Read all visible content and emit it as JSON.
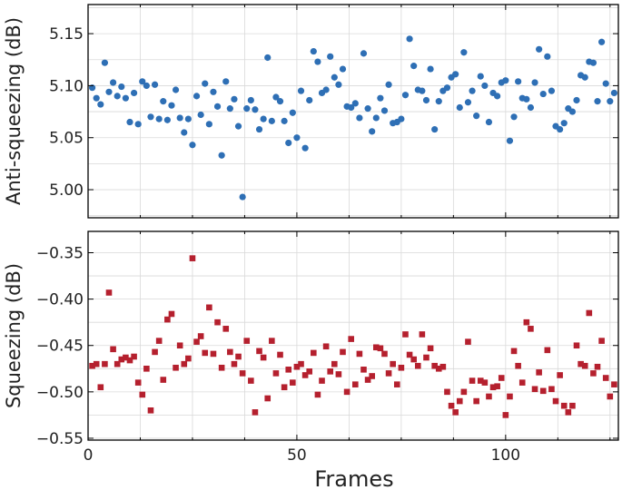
{
  "figure": {
    "xlabel": "Frames"
  },
  "chart_data": [
    {
      "type": "scatter",
      "title": "",
      "xlabel": "",
      "ylabel": "Anti-squeezing (dB)",
      "xlim": [
        0,
        127
      ],
      "ylim": [
        4.973,
        5.178
      ],
      "xticks": [
        0,
        50,
        100
      ],
      "xticklabels": [
        "",
        "",
        ""
      ],
      "yticks": [
        5.0,
        5.05,
        5.1,
        5.15
      ],
      "yticklabels": [
        "5.00",
        "5.05",
        "5.10",
        "5.15"
      ],
      "grid": true,
      "marker": "circle",
      "color": "#2e6fb5",
      "series": [
        {
          "x": [
            1,
            2,
            3,
            4,
            5,
            6,
            7,
            8,
            9,
            10,
            11,
            12,
            13,
            14,
            15,
            16,
            17,
            18,
            19,
            20,
            21,
            22,
            23,
            24,
            25,
            26,
            27,
            28,
            29,
            30,
            31,
            32,
            33,
            34,
            35,
            36,
            37,
            38,
            39,
            40,
            41,
            42,
            43,
            44,
            45,
            46,
            47,
            48,
            49,
            50,
            51,
            52,
            53,
            54,
            55,
            56,
            57,
            58,
            59,
            60,
            61,
            62,
            63,
            64,
            65,
            66,
            67,
            68,
            69,
            70,
            71,
            72,
            73,
            74,
            75,
            76,
            77,
            78,
            79,
            80,
            81,
            82,
            83,
            84,
            85,
            86,
            87,
            88,
            89,
            90,
            91,
            92,
            93,
            94,
            95,
            96,
            97,
            98,
            99,
            100,
            101,
            102,
            103,
            104,
            105,
            106,
            107,
            108,
            109,
            110,
            111,
            112,
            113,
            114,
            115,
            116,
            117,
            118,
            119,
            120,
            121,
            122,
            123,
            124,
            125,
            126
          ],
          "y": [
            5.098,
            5.088,
            5.082,
            5.122,
            5.094,
            5.103,
            5.09,
            5.099,
            5.088,
            5.065,
            5.093,
            5.063,
            5.104,
            5.1,
            5.07,
            5.101,
            5.068,
            5.085,
            5.067,
            5.081,
            5.096,
            5.069,
            5.055,
            5.068,
            5.043,
            5.09,
            5.072,
            5.102,
            5.063,
            5.094,
            5.08,
            5.033,
            5.104,
            5.078,
            5.087,
            5.061,
            4.993,
            5.078,
            5.086,
            5.077,
            5.058,
            5.068,
            5.127,
            5.066,
            5.089,
            5.085,
            5.066,
            5.045,
            5.074,
            5.05,
            5.095,
            5.04,
            5.086,
            5.133,
            5.123,
            5.093,
            5.096,
            5.128,
            5.108,
            5.101,
            5.116,
            5.08,
            5.079,
            5.083,
            5.069,
            5.131,
            5.078,
            5.056,
            5.069,
            5.088,
            5.076,
            5.101,
            5.064,
            5.065,
            5.068,
            5.091,
            5.145,
            5.119,
            5.096,
            5.095,
            5.086,
            5.116,
            5.058,
            5.085,
            5.095,
            5.098,
            5.108,
            5.111,
            5.079,
            5.132,
            5.084,
            5.095,
            5.071,
            5.109,
            5.1,
            5.065,
            5.093,
            5.09,
            5.103,
            5.105,
            5.047,
            5.07,
            5.104,
            5.088,
            5.087,
            5.079,
            5.103,
            5.135,
            5.092,
            5.128,
            5.095,
            5.061,
            5.058,
            5.064,
            5.078,
            5.075,
            5.086,
            5.11,
            5.108,
            5.123,
            5.122,
            5.085,
            5.142,
            5.102,
            5.085,
            5.093
          ]
        }
      ]
    },
    {
      "type": "scatter",
      "title": "",
      "xlabel": "Frames",
      "ylabel": "Squeezing (dB)",
      "xlim": [
        0,
        127
      ],
      "ylim": [
        -0.552,
        -0.327
      ],
      "xticks": [
        0,
        50,
        100
      ],
      "xticklabels": [
        "0",
        "50",
        "100"
      ],
      "yticks": [
        -0.35,
        -0.4,
        -0.45,
        -0.5,
        -0.55
      ],
      "yticklabels": [
        "−0.35",
        "−0.40",
        "−0.45",
        "−0.50",
        "−0.55"
      ],
      "grid": true,
      "marker": "square",
      "color": "#b5202e",
      "series": [
        {
          "x": [
            1,
            2,
            3,
            4,
            5,
            6,
            7,
            8,
            9,
            10,
            11,
            12,
            13,
            14,
            15,
            16,
            17,
            18,
            19,
            20,
            21,
            22,
            23,
            24,
            25,
            26,
            27,
            28,
            29,
            30,
            31,
            32,
            33,
            34,
            35,
            36,
            37,
            38,
            39,
            40,
            41,
            42,
            43,
            44,
            45,
            46,
            47,
            48,
            49,
            50,
            51,
            52,
            53,
            54,
            55,
            56,
            57,
            58,
            59,
            60,
            61,
            62,
            63,
            64,
            65,
            66,
            67,
            68,
            69,
            70,
            71,
            72,
            73,
            74,
            75,
            76,
            77,
            78,
            79,
            80,
            81,
            82,
            83,
            84,
            85,
            86,
            87,
            88,
            89,
            90,
            91,
            92,
            93,
            94,
            95,
            96,
            97,
            98,
            99,
            100,
            101,
            102,
            103,
            104,
            105,
            106,
            107,
            108,
            109,
            110,
            111,
            112,
            113,
            114,
            115,
            116,
            117,
            118,
            119,
            120,
            121,
            122,
            123,
            124,
            125,
            126
          ],
          "y": [
            -0.472,
            -0.47,
            -0.495,
            -0.47,
            -0.393,
            -0.454,
            -0.47,
            -0.465,
            -0.463,
            -0.466,
            -0.462,
            -0.49,
            -0.503,
            -0.475,
            -0.52,
            -0.457,
            -0.445,
            -0.487,
            -0.422,
            -0.416,
            -0.474,
            -0.45,
            -0.47,
            -0.464,
            -0.356,
            -0.446,
            -0.44,
            -0.458,
            -0.409,
            -0.459,
            -0.425,
            -0.474,
            -0.432,
            -0.457,
            -0.47,
            -0.462,
            -0.48,
            -0.445,
            -0.488,
            -0.522,
            -0.456,
            -0.463,
            -0.507,
            -0.445,
            -0.48,
            -0.46,
            -0.495,
            -0.476,
            -0.49,
            -0.473,
            -0.47,
            -0.482,
            -0.478,
            -0.458,
            -0.503,
            -0.488,
            -0.451,
            -0.478,
            -0.47,
            -0.481,
            -0.457,
            -0.5,
            -0.443,
            -0.492,
            -0.459,
            -0.476,
            -0.487,
            -0.483,
            -0.452,
            -0.453,
            -0.459,
            -0.48,
            -0.47,
            -0.492,
            -0.474,
            -0.438,
            -0.46,
            -0.465,
            -0.472,
            -0.438,
            -0.463,
            -0.453,
            -0.472,
            -0.475,
            -0.473,
            -0.5,
            -0.515,
            -0.522,
            -0.51,
            -0.5,
            -0.446,
            -0.488,
            -0.51,
            -0.488,
            -0.49,
            -0.505,
            -0.495,
            -0.494,
            -0.485,
            -0.525,
            -0.505,
            -0.456,
            -0.472,
            -0.49,
            -0.425,
            -0.432,
            -0.497,
            -0.479,
            -0.499,
            -0.455,
            -0.497,
            -0.51,
            -0.482,
            -0.515,
            -0.522,
            -0.515,
            -0.45,
            -0.47,
            -0.472,
            -0.415,
            -0.48,
            -0.473,
            -0.445,
            -0.485,
            -0.505,
            -0.492
          ]
        }
      ]
    }
  ]
}
